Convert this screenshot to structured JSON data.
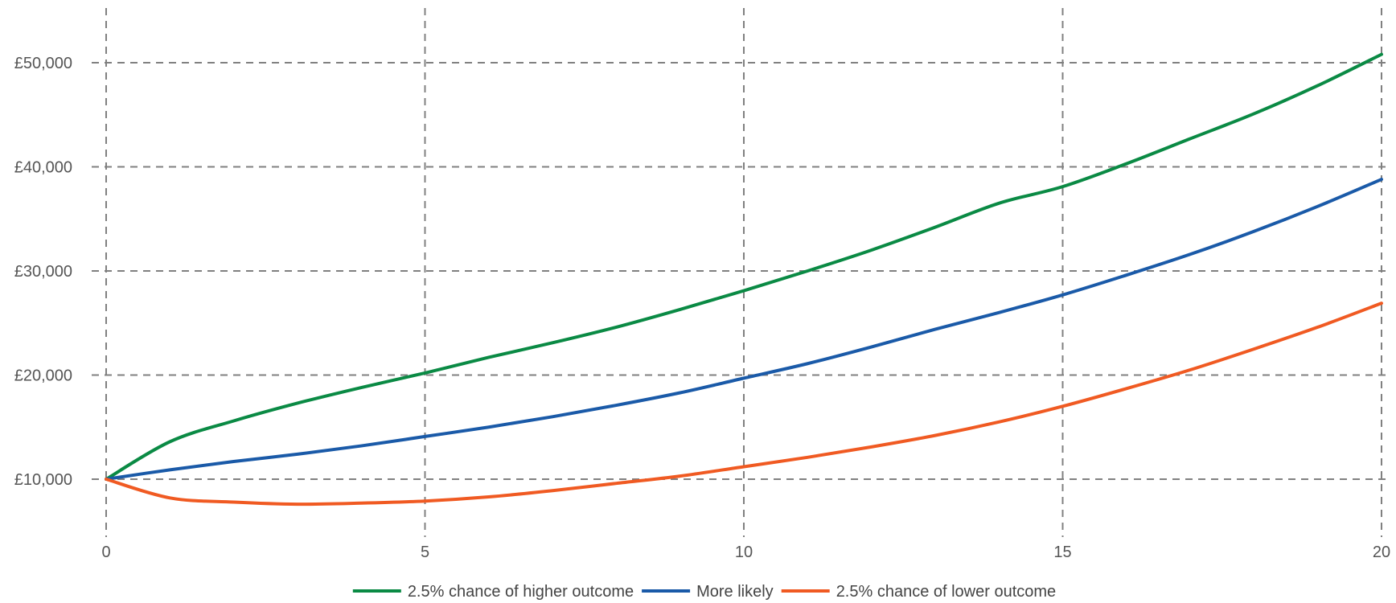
{
  "chart_data": {
    "type": "line",
    "title": "",
    "xlabel": "",
    "ylabel": "",
    "x": [
      0,
      1,
      2,
      3,
      4,
      5,
      6,
      7,
      8,
      9,
      10,
      11,
      12,
      13,
      14,
      15,
      16,
      17,
      18,
      19,
      20
    ],
    "x_ticks": [
      "0",
      "5",
      "10",
      "15",
      "20"
    ],
    "x_tick_values": [
      0,
      5,
      10,
      15,
      20
    ],
    "y_ticks": [
      "£10,000",
      "£20,000",
      "£30,000",
      "£40,000",
      "£50,000"
    ],
    "y_tick_values": [
      10000,
      20000,
      30000,
      40000,
      50000
    ],
    "xlim": [
      0,
      20
    ],
    "ylim": [
      5500,
      56000
    ],
    "grid": true,
    "legend_position": "bottom",
    "series": [
      {
        "name": "2.5% chance of higher outcome",
        "color": "#0a8a44",
        "values": [
          10000,
          13600,
          15600,
          17300,
          18800,
          20200,
          21700,
          23100,
          24600,
          26300,
          28100,
          30000,
          32000,
          34200,
          36500,
          38100,
          40300,
          42700,
          45100,
          47800,
          50800
        ]
      },
      {
        "name": "More likely",
        "color": "#1a5aa8",
        "values": [
          10000,
          10900,
          11700,
          12400,
          13200,
          14100,
          15000,
          16000,
          17100,
          18300,
          19700,
          21100,
          22700,
          24400,
          26000,
          27700,
          29600,
          31600,
          33800,
          36200,
          38800
        ]
      },
      {
        "name": "2.5% chance of lower outcome",
        "color": "#f05a22",
        "values": [
          10000,
          8200,
          7800,
          7600,
          7700,
          7900,
          8300,
          8900,
          9600,
          10300,
          11200,
          12100,
          13100,
          14200,
          15500,
          17000,
          18700,
          20500,
          22500,
          24600,
          26900
        ]
      }
    ]
  }
}
